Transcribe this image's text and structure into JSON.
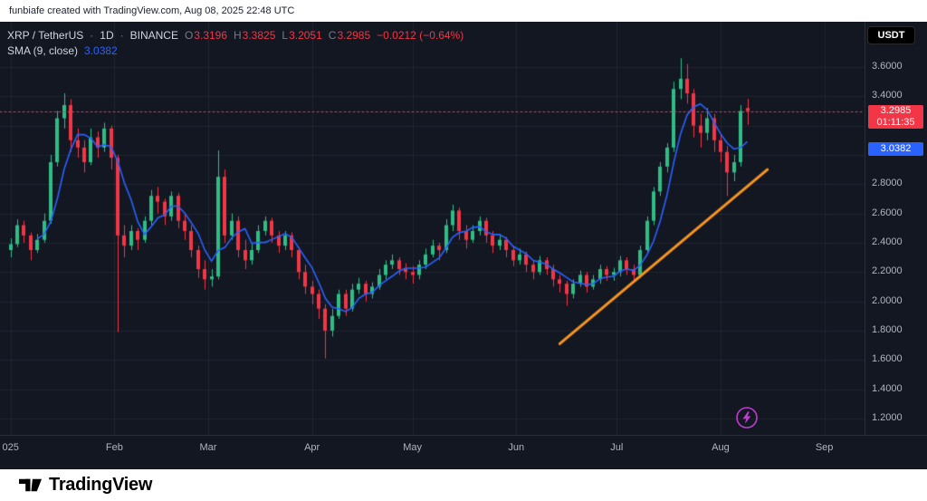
{
  "header": {
    "attribution": "funbiafe created with TradingView.com, Aug 08, 2025 22:48 UTC"
  },
  "toolbar": {
    "currency_button": "USDT"
  },
  "legend": {
    "symbol": "XRP / TetherUS",
    "separator": "·",
    "interval": "1D",
    "exchange": "BINANCE",
    "ohlc": {
      "o_label": "O",
      "o": "3.3196",
      "h_label": "H",
      "h": "3.3825",
      "l_label": "L",
      "l": "3.2051",
      "c_label": "C",
      "c": "3.2985"
    },
    "change": "−0.0212 (−0.64%)",
    "indicator": {
      "name": "SMA (9, close)",
      "value": "3.0382"
    }
  },
  "price_axis": {
    "ticks": [
      {
        "price": 3.6,
        "label": "3.6000"
      },
      {
        "price": 3.4,
        "label": "3.4000"
      },
      {
        "price": 2.8,
        "label": "2.8000"
      },
      {
        "price": 2.6,
        "label": "2.6000"
      },
      {
        "price": 2.4,
        "label": "2.4000"
      },
      {
        "price": 2.2,
        "label": "2.2000"
      },
      {
        "price": 2.0,
        "label": "2.0000"
      },
      {
        "price": 1.8,
        "label": "1.8000"
      },
      {
        "price": 1.6,
        "label": "1.6000"
      },
      {
        "price": 1.4,
        "label": "1.4000"
      },
      {
        "price": 1.2,
        "label": "1.2000"
      }
    ],
    "price_badge": {
      "value": 3.2985,
      "label": "3.2985",
      "countdown": "01:11:35",
      "color": "#f23645"
    },
    "sma_badge": {
      "value": 3.0382,
      "label": "3.0382",
      "color": "#2962ff"
    }
  },
  "time_axis": {
    "ticks": [
      {
        "label": "025",
        "slot": 0
      },
      {
        "label": "Feb",
        "slot": 15.5
      },
      {
        "label": "Mar",
        "slot": 29.5
      },
      {
        "label": "Apr",
        "slot": 45
      },
      {
        "label": "May",
        "slot": 60
      },
      {
        "label": "Jun",
        "slot": 75.5
      },
      {
        "label": "Jul",
        "slot": 90.5
      },
      {
        "label": "Aug",
        "slot": 106
      },
      {
        "label": "Sep",
        "slot": 121.5
      }
    ]
  },
  "footer": {
    "brand": "TradingView"
  },
  "chart_data": {
    "type": "candlestick",
    "title": "XRP / TetherUS 1D BINANCE",
    "ylim": [
      1.088,
      3.909
    ],
    "total_slots": 128,
    "days_per_candle": 2,
    "colors": {
      "up": "#2ebd85",
      "down": "#f23645",
      "grid": "rgba(130,134,148,0.12)",
      "background": "#131722",
      "sma": "#2962ff",
      "trendline": "#f7941e",
      "price_line": "#f23645",
      "boost": "#c23bd2"
    },
    "sma": {
      "period": 9
    },
    "trendline": {
      "from": {
        "slot": 82,
        "price": 1.71
      },
      "to": {
        "slot": 113,
        "price": 2.9
      }
    },
    "price_line": {
      "price": 3.2985
    },
    "ohlc": [
      [
        2.35,
        2.43,
        2.3,
        2.39
      ],
      [
        2.39,
        2.56,
        2.37,
        2.52
      ],
      [
        2.52,
        2.55,
        2.4,
        2.45
      ],
      [
        2.45,
        2.47,
        2.28,
        2.35
      ],
      [
        2.35,
        2.46,
        2.33,
        2.42
      ],
      [
        2.42,
        2.6,
        2.4,
        2.55
      ],
      [
        2.55,
        3.0,
        2.53,
        2.95
      ],
      [
        2.95,
        3.3,
        2.92,
        3.25
      ],
      [
        3.25,
        3.42,
        3.18,
        3.34
      ],
      [
        3.34,
        3.38,
        3.02,
        3.1
      ],
      [
        3.1,
        3.18,
        2.98,
        3.05
      ],
      [
        3.05,
        3.1,
        2.88,
        2.95
      ],
      [
        2.95,
        3.18,
        2.93,
        3.12
      ],
      [
        3.12,
        3.16,
        2.98,
        3.05
      ],
      [
        3.05,
        3.22,
        3.02,
        3.18
      ],
      [
        3.18,
        3.2,
        2.9,
        2.98
      ],
      [
        2.98,
        3.0,
        1.79,
        2.45
      ],
      [
        2.45,
        2.52,
        2.3,
        2.38
      ],
      [
        2.38,
        2.52,
        2.35,
        2.48
      ],
      [
        2.48,
        2.5,
        2.35,
        2.42
      ],
      [
        2.42,
        2.58,
        2.4,
        2.55
      ],
      [
        2.55,
        2.76,
        2.52,
        2.72
      ],
      [
        2.72,
        2.78,
        2.6,
        2.68
      ],
      [
        2.68,
        2.7,
        2.52,
        2.58
      ],
      [
        2.58,
        2.75,
        2.55,
        2.72
      ],
      [
        2.72,
        2.74,
        2.5,
        2.55
      ],
      [
        2.55,
        2.6,
        2.42,
        2.48
      ],
      [
        2.48,
        2.52,
        2.3,
        2.35
      ],
      [
        2.35,
        2.38,
        2.16,
        2.22
      ],
      [
        2.22,
        2.28,
        2.08,
        2.15
      ],
      [
        2.15,
        2.22,
        2.1,
        2.17
      ],
      [
        2.17,
        3.03,
        2.15,
        2.85
      ],
      [
        2.85,
        2.9,
        2.4,
        2.45
      ],
      [
        2.45,
        2.6,
        2.42,
        2.55
      ],
      [
        2.55,
        2.58,
        2.3,
        2.35
      ],
      [
        2.35,
        2.42,
        2.22,
        2.28
      ],
      [
        2.28,
        2.4,
        2.25,
        2.35
      ],
      [
        2.35,
        2.52,
        2.33,
        2.48
      ],
      [
        2.48,
        2.58,
        2.45,
        2.55
      ],
      [
        2.55,
        2.57,
        2.4,
        2.45
      ],
      [
        2.45,
        2.48,
        2.33,
        2.38
      ],
      [
        2.38,
        2.48,
        2.35,
        2.45
      ],
      [
        2.45,
        2.47,
        2.3,
        2.35
      ],
      [
        2.35,
        2.37,
        2.15,
        2.2
      ],
      [
        2.2,
        2.25,
        2.05,
        2.1
      ],
      [
        2.1,
        2.14,
        1.98,
        2.05
      ],
      [
        2.05,
        2.08,
        1.88,
        1.95
      ],
      [
        1.95,
        1.98,
        1.61,
        1.8
      ],
      [
        1.8,
        1.95,
        1.76,
        1.9
      ],
      [
        1.9,
        2.08,
        1.88,
        2.05
      ],
      [
        2.05,
        2.08,
        1.9,
        1.95
      ],
      [
        1.95,
        2.12,
        1.93,
        2.08
      ],
      [
        2.08,
        2.16,
        2.05,
        2.12
      ],
      [
        2.12,
        2.14,
        2.0,
        2.05
      ],
      [
        2.05,
        2.13,
        2.02,
        2.1
      ],
      [
        2.1,
        2.22,
        2.08,
        2.18
      ],
      [
        2.18,
        2.28,
        2.15,
        2.25
      ],
      [
        2.25,
        2.32,
        2.22,
        2.28
      ],
      [
        2.28,
        2.3,
        2.18,
        2.22
      ],
      [
        2.22,
        2.26,
        2.15,
        2.2
      ],
      [
        2.2,
        2.24,
        2.12,
        2.18
      ],
      [
        2.18,
        2.28,
        2.15,
        2.25
      ],
      [
        2.25,
        2.36,
        2.22,
        2.32
      ],
      [
        2.32,
        2.42,
        2.3,
        2.38
      ],
      [
        2.38,
        2.4,
        2.28,
        2.35
      ],
      [
        2.35,
        2.56,
        2.33,
        2.52
      ],
      [
        2.52,
        2.66,
        2.48,
        2.62
      ],
      [
        2.62,
        2.64,
        2.42,
        2.48
      ],
      [
        2.48,
        2.52,
        2.36,
        2.42
      ],
      [
        2.42,
        2.52,
        2.4,
        2.48
      ],
      [
        2.48,
        2.58,
        2.45,
        2.55
      ],
      [
        2.55,
        2.57,
        2.4,
        2.45
      ],
      [
        2.45,
        2.48,
        2.33,
        2.38
      ],
      [
        2.38,
        2.46,
        2.35,
        2.42
      ],
      [
        2.42,
        2.44,
        2.3,
        2.35
      ],
      [
        2.35,
        2.38,
        2.24,
        2.28
      ],
      [
        2.28,
        2.36,
        2.25,
        2.32
      ],
      [
        2.32,
        2.34,
        2.2,
        2.25
      ],
      [
        2.25,
        2.28,
        2.15,
        2.2
      ],
      [
        2.2,
        2.31,
        2.18,
        2.28
      ],
      [
        2.28,
        2.3,
        2.18,
        2.22
      ],
      [
        2.22,
        2.25,
        2.1,
        2.15
      ],
      [
        2.15,
        2.18,
        2.06,
        2.12
      ],
      [
        2.12,
        2.14,
        1.97,
        2.05
      ],
      [
        2.05,
        2.15,
        2.02,
        2.12
      ],
      [
        2.12,
        2.21,
        2.1,
        2.18
      ],
      [
        2.18,
        2.2,
        2.06,
        2.1
      ],
      [
        2.1,
        2.18,
        2.08,
        2.15
      ],
      [
        2.15,
        2.25,
        2.12,
        2.22
      ],
      [
        2.22,
        2.24,
        2.14,
        2.18
      ],
      [
        2.18,
        2.23,
        2.14,
        2.2
      ],
      [
        2.2,
        2.31,
        2.17,
        2.28
      ],
      [
        2.28,
        2.3,
        2.18,
        2.22
      ],
      [
        2.22,
        2.25,
        2.13,
        2.18
      ],
      [
        2.18,
        2.38,
        2.16,
        2.35
      ],
      [
        2.35,
        2.58,
        2.33,
        2.55
      ],
      [
        2.55,
        2.78,
        2.52,
        2.75
      ],
      [
        2.75,
        2.95,
        2.72,
        2.92
      ],
      [
        2.92,
        3.08,
        2.88,
        3.05
      ],
      [
        3.05,
        3.5,
        3.02,
        3.45
      ],
      [
        3.45,
        3.66,
        3.38,
        3.52
      ],
      [
        3.52,
        3.62,
        3.35,
        3.42
      ],
      [
        3.42,
        3.45,
        3.12,
        3.2
      ],
      [
        3.2,
        3.28,
        3.05,
        3.15
      ],
      [
        3.15,
        3.32,
        3.1,
        3.25
      ],
      [
        3.25,
        3.28,
        3.02,
        3.1
      ],
      [
        3.1,
        3.14,
        2.95,
        3.02
      ],
      [
        3.02,
        3.06,
        2.72,
        2.88
      ],
      [
        2.88,
        3.0,
        2.82,
        2.95
      ],
      [
        2.95,
        3.34,
        2.92,
        3.3
      ],
      [
        3.3196,
        3.3825,
        3.2051,
        3.2985
      ]
    ]
  }
}
